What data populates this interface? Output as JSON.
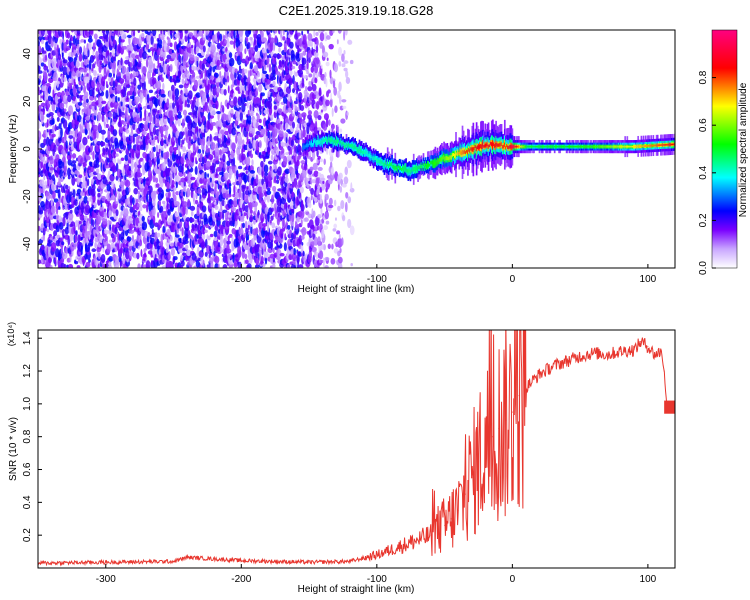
{
  "title": "C2E1.2025.319.19.18.G28",
  "chart_data": [
    {
      "type": "heatmap",
      "xlabel": "Height of straight line (km)",
      "ylabel": "Frequency (Hz)",
      "xlim": [
        -350,
        120
      ],
      "ylim": [
        -50,
        50
      ],
      "xticks": [
        -300,
        -200,
        -100,
        0,
        100
      ],
      "yticks": [
        -40,
        -20,
        0,
        20,
        40
      ],
      "colorbar": {
        "label": "Normalized spectral amplitude",
        "range": [
          0,
          1
        ],
        "ticks": [
          0.0,
          0.2,
          0.4,
          0.6,
          0.8
        ],
        "tick_labels": [
          "0.0",
          "0.2",
          "0.4",
          "0.6",
          "0.8"
        ],
        "colors": [
          "#ffffff",
          "#7a00ff",
          "#0000ff",
          "#00ffff",
          "#00ff00",
          "#ffff00",
          "#ff0000",
          "#ff0080"
        ]
      },
      "noise_region": {
        "x": [
          -350,
          -130
        ],
        "typical_amplitude": 0.15
      },
      "signal_ridge": {
        "x": [
          -155,
          -145,
          -135,
          -125,
          -115,
          -105,
          -95,
          -85,
          -75,
          -65,
          -55,
          -45,
          -35,
          -25,
          -15,
          -5,
          0,
          10,
          30,
          60,
          90,
          120
        ],
        "freq": [
          1,
          3,
          4,
          2,
          0,
          -3,
          -6,
          -8,
          -9,
          -7,
          -5,
          -3,
          -1,
          1,
          2,
          1,
          1,
          1,
          1,
          1,
          1,
          2
        ],
        "amplitude": [
          0.3,
          0.4,
          0.45,
          0.45,
          0.45,
          0.4,
          0.45,
          0.5,
          0.45,
          0.5,
          0.55,
          0.65,
          0.8,
          0.85,
          0.85,
          0.8,
          0.95,
          0.5,
          0.5,
          0.55,
          0.7,
          0.85
        ]
      }
    },
    {
      "type": "line",
      "xlabel": "Height of straight line (km)",
      "ylabel": "SNR (10 * v/v)",
      "y_multiplier": "(x10⁴)",
      "xlim": [
        -350,
        120
      ],
      "ylim": [
        0,
        14500
      ],
      "xticks": [
        -300,
        -200,
        -100,
        0,
        100
      ],
      "yticks": [
        2000,
        4000,
        6000,
        8000,
        10000,
        12000,
        14000
      ],
      "ytick_labels": [
        "0.2",
        "0.4",
        "0.6",
        "0.8",
        "1.0",
        "1.2",
        "1.4"
      ],
      "color": "#e8362e",
      "series": [
        {
          "x": [
            -350,
            -300,
            -250,
            -240,
            -200,
            -150,
            -120,
            -100,
            -80,
            -70,
            -60,
            -55,
            -50,
            -45,
            -40,
            -35,
            -30,
            -25,
            -20,
            -15,
            -10,
            -5,
            0,
            5,
            10,
            20,
            30,
            40,
            50,
            60,
            70,
            80,
            90,
            95,
            100,
            105,
            110,
            112,
            114,
            120
          ],
          "y": [
            300,
            350,
            400,
            650,
            450,
            350,
            400,
            800,
            1400,
            1700,
            2000,
            2300,
            2600,
            3000,
            3500,
            4500,
            5500,
            6500,
            7500,
            8000,
            8500,
            9000,
            9500,
            10500,
            11000,
            11800,
            12300,
            12600,
            12900,
            13100,
            13000,
            13200,
            13300,
            13800,
            13500,
            13000,
            13200,
            12000,
            9800,
            9800
          ]
        }
      ]
    }
  ]
}
